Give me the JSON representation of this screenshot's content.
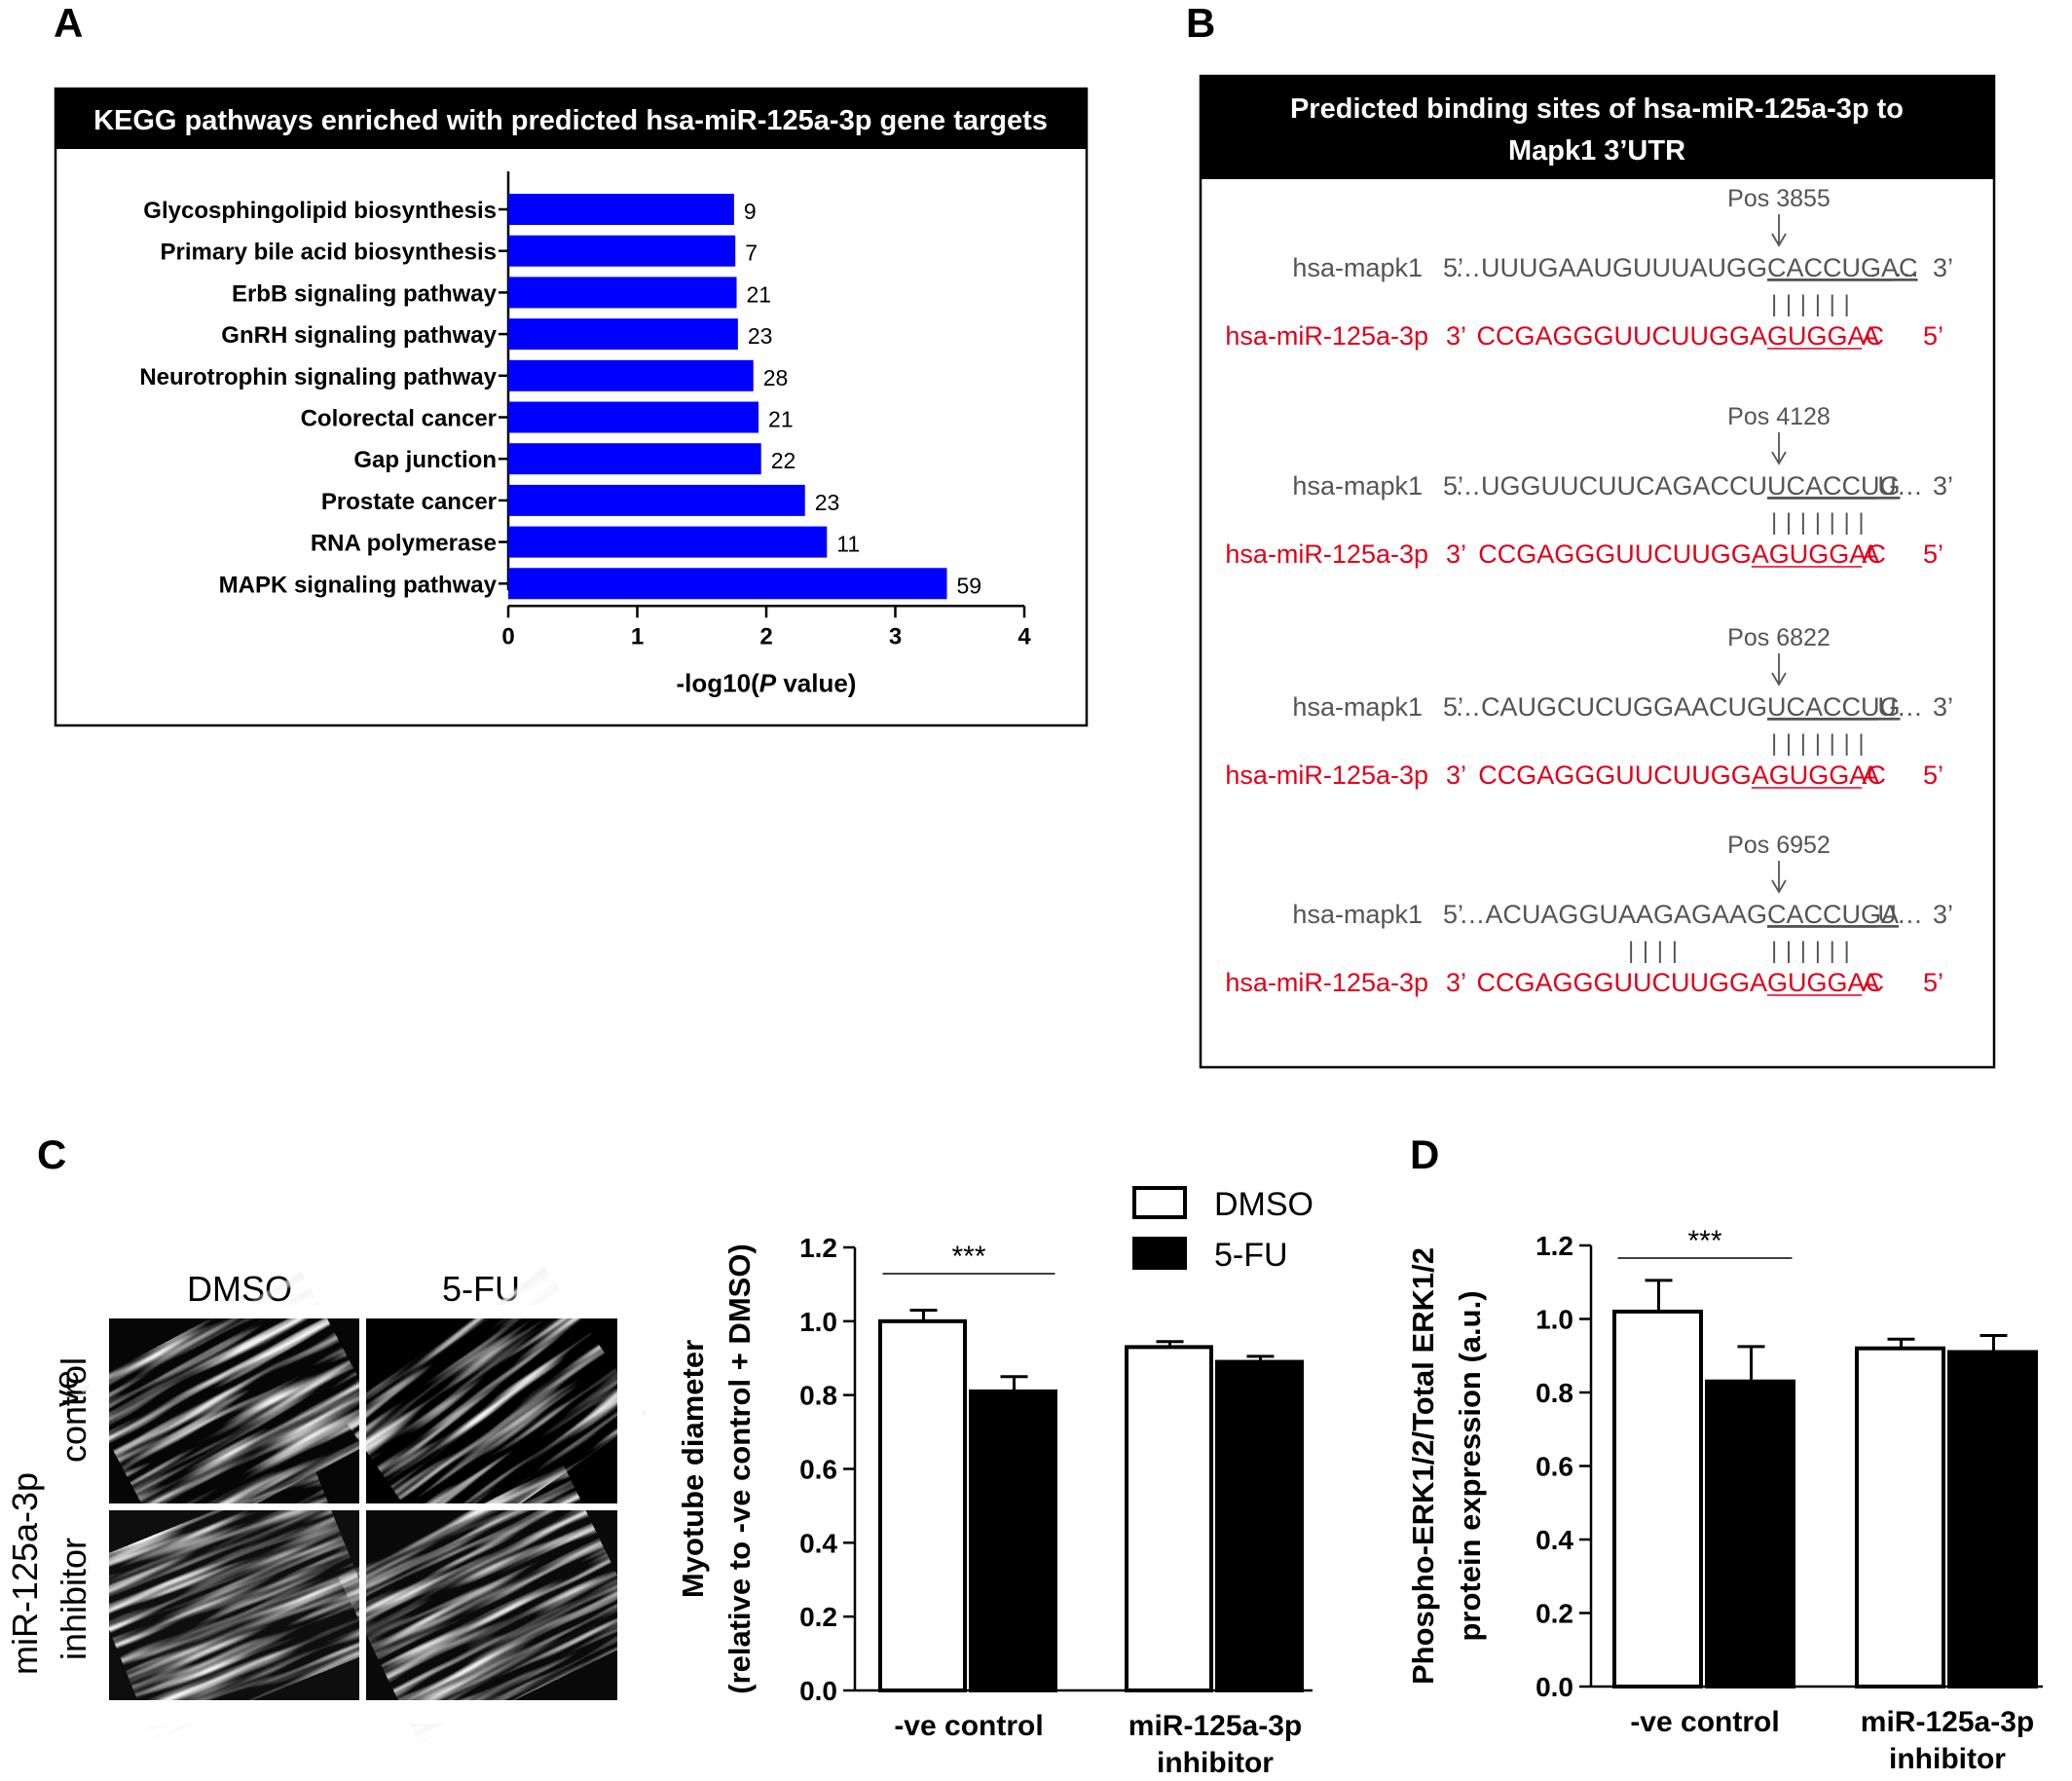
{
  "panels": {
    "a": {
      "letter": "A",
      "header": "KEGG pathways enriched with predicted hsa-miR-125a-3p gene targets",
      "chart_data": {
        "type": "bar",
        "orientation": "horizontal",
        "categories": [
          "Glycosphingolipid biosynthesis",
          "Primary bile acid biosynthesis",
          "ErbB signaling pathway",
          "GnRH signaling pathway",
          "Neurotrophin signaling pathway",
          "Colorectal cancer",
          "Gap junction",
          "Prostate cancer",
          "RNA polymerase",
          "MAPK signaling pathway"
        ],
        "values": [
          1.75,
          1.76,
          1.77,
          1.78,
          1.9,
          1.94,
          1.96,
          2.3,
          2.47,
          3.4
        ],
        "data_labels": [
          "9",
          "7",
          "21",
          "23",
          "28",
          "21",
          "22",
          "23",
          "11",
          "59"
        ],
        "xlabel_pre": "-log10(",
        "xlabel_italic": "P",
        "xlabel_post": " value)",
        "xlim": [
          0,
          4
        ],
        "xticks": [
          "0",
          "1",
          "2",
          "3",
          "4"
        ],
        "bar_color": "#0000ff"
      }
    },
    "b": {
      "letter": "B",
      "header_line1": "Predicted binding sites of hsa-miR-125a-3p to",
      "header_line2": "Mapk1 3’UTR",
      "mir_color": "#e0001b",
      "sites": [
        {
          "pos": "Pos 3855",
          "target_label": "hsa-mapk1",
          "target_5": "5’",
          "target_pre": "…UUUGAAUGUUUAUGG",
          "target_site": "CACCUGAC",
          "target_post": "…",
          "target_3": "3’",
          "pairs_left": "",
          "pairs": "| | | | | |",
          "mir_label": "hsa-miR-125a-3p",
          "mir_3": "3’",
          "mir_pre": "CCGAGGGUUCUUGGA",
          "mir_site": "GUGGAC",
          "mir_post": "A",
          "mir_5": "5’"
        },
        {
          "pos": "Pos 4128",
          "target_label": "hsa-mapk1",
          "target_5": "5’",
          "target_pre": "…UGGUUCUUCAGACCU",
          "target_site": "UCACCUG",
          "target_post": "U…",
          "target_3": "3’",
          "pairs_left": "",
          "pairs": "| | | | | | |",
          "mir_label": "hsa-miR-125a-3p",
          "mir_3": "3’",
          "mir_pre": "CCGAGGGUUCUUGG",
          "mir_site": "AGUGGAC",
          "mir_post": "A",
          "mir_5": "5’"
        },
        {
          "pos": "Pos 6822",
          "target_label": "hsa-mapk1",
          "target_5": "5’",
          "target_pre": "…CAUGCUCUGGAACUG",
          "target_site": "UCACCUG",
          "target_post": "U…",
          "target_3": "3’",
          "pairs_left": "",
          "pairs": "| | | | | | |",
          "mir_label": "hsa-miR-125a-3p",
          "mir_3": "3’",
          "mir_pre": "CCGAGGGUUCUUGG",
          "mir_site": "AGUGGAC",
          "mir_post": "A",
          "mir_5": "5’"
        },
        {
          "pos": "Pos 6952",
          "target_label": "hsa-mapk1",
          "target_5": "5’",
          "target_pre": "…ACUAGGUAAGAGAAG",
          "target_site": "CACCUGA",
          "target_post": "U…",
          "target_3": "3’",
          "pairs_left": "| | | |",
          "pairs": "| | | | | |",
          "mir_label": "hsa-miR-125a-3p",
          "mir_3": "3’",
          "mir_pre": "CCGAGGGUUCUUGGA",
          "mir_site": "GUGGAC",
          "mir_post": "A",
          "mir_5": "5’"
        }
      ]
    },
    "c": {
      "letter": "C",
      "micrographs": {
        "col_labels": [
          "DMSO",
          "5-FU"
        ],
        "row_labels": [
          [
            "-ve",
            "control"
          ],
          [
            "miR-125a-3p",
            "inhibitor"
          ]
        ]
      },
      "chart_data": {
        "type": "bar",
        "categories": [
          "-ve control",
          "miR-125a-3p"
        ],
        "category_line2": [
          "",
          "inhibitor"
        ],
        "series": [
          {
            "name": "DMSO",
            "values": [
              1.0,
              0.93
            ],
            "errors": [
              0.03,
              0.015
            ],
            "fill": "#ffffff"
          },
          {
            "name": "5-FU",
            "values": [
              0.81,
              0.89
            ],
            "errors": [
              0.04,
              0.015
            ],
            "fill": "#000000"
          }
        ],
        "ylabel_line1": "Myotube diameter",
        "ylabel_line2": "(relative to -ve control + DMSO)",
        "ylim": [
          0,
          1.2
        ],
        "yticks": [
          "0.0",
          "0.2",
          "0.4",
          "0.6",
          "0.8",
          "1.0",
          "1.2"
        ],
        "significance": "***",
        "legend": "top-right"
      }
    },
    "d": {
      "letter": "D",
      "chart_data": {
        "type": "bar",
        "categories": [
          "-ve control",
          "miR-125a-3p"
        ],
        "category_line2": [
          "",
          "inhibitor"
        ],
        "series": [
          {
            "name": "DMSO",
            "values": [
              1.02,
              0.92
            ],
            "errors": [
              0.085,
              0.025
            ],
            "fill": "#ffffff"
          },
          {
            "name": "5-FU",
            "values": [
              0.83,
              0.91
            ],
            "errors": [
              0.095,
              0.045
            ],
            "fill": "#000000"
          }
        ],
        "ylabel_line1": "Phospho-ERK1/2/Total ERK1/2",
        "ylabel_line2": "protein expression (a.u.)",
        "ylim": [
          0,
          1.2
        ],
        "yticks": [
          "0.0",
          "0.2",
          "0.4",
          "0.6",
          "0.8",
          "1.0",
          "1.2"
        ],
        "significance": "***"
      }
    }
  }
}
